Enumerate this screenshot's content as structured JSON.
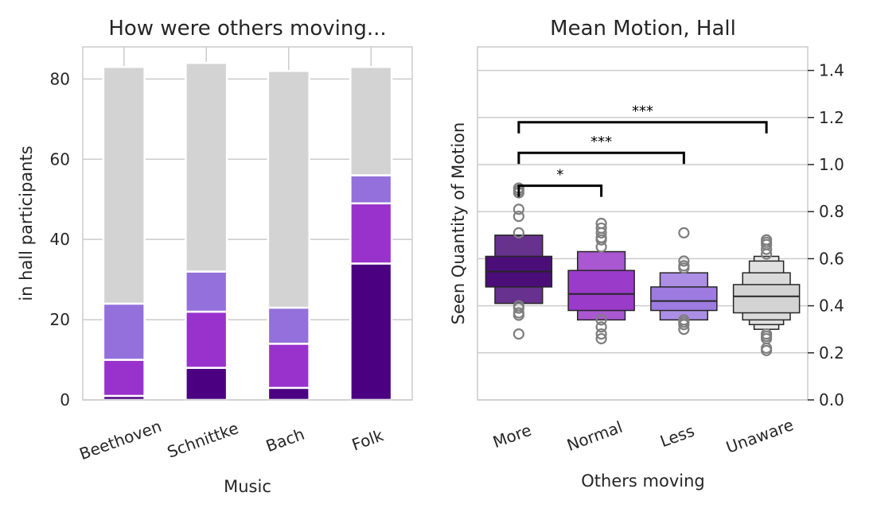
{
  "chart_data": [
    {
      "type": "bar",
      "stacked": true,
      "title": "How were others moving...",
      "xlabel": "Music",
      "ylabel": "in hall participants",
      "categories": [
        "Beethoven",
        "Schnittke",
        "Bach",
        "Folk"
      ],
      "ylim": [
        0,
        88
      ],
      "yticks": [
        0,
        20,
        40,
        60,
        80
      ],
      "grid": true,
      "series": [
        {
          "values": [
            1,
            8,
            3,
            34
          ],
          "color": "#4b0082"
        },
        {
          "values": [
            9,
            14,
            11,
            15
          ],
          "color": "#9932cc"
        },
        {
          "values": [
            14,
            10,
            9,
            7
          ],
          "color": "#9370db"
        },
        {
          "values": [
            59,
            52,
            59,
            27
          ],
          "color": "#d3d3d3"
        }
      ]
    },
    {
      "type": "boxen",
      "title": "Mean Motion, Hall",
      "xlabel": "Others moving",
      "ylabel": "Seen Quantity of Motion",
      "categories": [
        "More",
        "Normal",
        "Less",
        "Unaware"
      ],
      "ylim": [
        0,
        1.5
      ],
      "yticks": [
        "0.0",
        "0.2",
        "0.4",
        "0.6",
        "0.8",
        "1.0",
        "1.2",
        "1.4"
      ],
      "grid": true,
      "groups": [
        {
          "color": "#4b0e79",
          "median": 0.545,
          "boxes": [
            [
              0.48,
              0.61
            ],
            [
              0.41,
              0.7
            ]
          ],
          "outliers": [
            0.28,
            0.36,
            0.37,
            0.39,
            0.4,
            0.71,
            0.78,
            0.81,
            0.88,
            0.89,
            0.9
          ]
        },
        {
          "color": "#9a3bc9",
          "median": 0.45,
          "boxes": [
            [
              0.38,
              0.55
            ],
            [
              0.34,
              0.63
            ]
          ],
          "outliers": [
            0.26,
            0.28,
            0.31,
            0.34,
            0.65,
            0.68,
            0.69,
            0.71,
            0.73,
            0.75
          ]
        },
        {
          "color": "#9d7be0",
          "median": 0.42,
          "boxes": [
            [
              0.38,
              0.48
            ],
            [
              0.34,
              0.54
            ]
          ],
          "outliers": [
            0.3,
            0.32,
            0.33,
            0.34,
            0.56,
            0.57,
            0.59,
            0.71
          ]
        },
        {
          "color": "#d3d3d3",
          "median": 0.44,
          "boxes": [
            [
              0.37,
              0.49
            ],
            [
              0.34,
              0.54
            ],
            [
              0.32,
              0.59
            ],
            [
              0.3,
              0.61
            ]
          ],
          "outliers": [
            0.21,
            0.22,
            0.26,
            0.27,
            0.28,
            0.62,
            0.64,
            0.66,
            0.67,
            0.68
          ]
        }
      ],
      "significance": [
        {
          "from": "More",
          "to": "Normal",
          "label": "*",
          "y": 0.91
        },
        {
          "from": "More",
          "to": "Less",
          "label": "***",
          "y": 1.05
        },
        {
          "from": "More",
          "to": "Unaware",
          "label": "***",
          "y": 1.18
        }
      ]
    }
  ]
}
